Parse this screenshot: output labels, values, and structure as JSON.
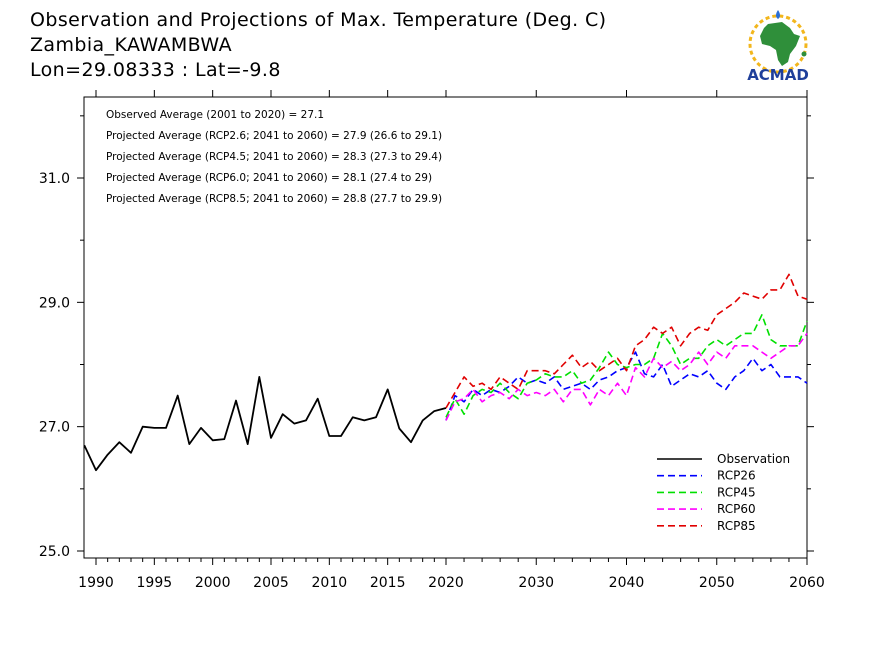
{
  "header": {
    "title": "Observation and Projections of Max. Temperature (Deg. C)",
    "location": "Zambia_KAWAMBWA",
    "coords": "Lon=29.08333 : Lat=-9.8"
  },
  "logo": {
    "text": "ACMAD",
    "icon": "africa-logo-icon",
    "color": "#1f3f9a"
  },
  "chart_data": {
    "type": "line",
    "x_axis": {
      "segments": [
        {
          "range": [
            1990,
            2020
          ],
          "ticks": [
            1990,
            1995,
            2000,
            2005,
            2010,
            2015,
            2020
          ]
        },
        {
          "range": [
            2020,
            2060
          ],
          "ticks": [
            2030,
            2040,
            2050,
            2060
          ]
        }
      ]
    },
    "y_axis": {
      "range": [
        24.9,
        32.3
      ],
      "ticks": [
        "25.0",
        "27.0",
        "29.0",
        "31.0"
      ]
    },
    "annotations": [
      "Observed Average (2001 to 2020) = 27.1",
      "Projected Average (RCP2.6; 2041 to 2060) = 27.9 (26.6 to 29.1)",
      "Projected Average (RCP4.5; 2041 to 2060) = 28.3 (27.3 to 29.4)",
      "Projected Average (RCP6.0; 2041 to 2060) = 28.1 (27.4 to 29)",
      "Projected Average (RCP8.5; 2041 to 2060) = 28.8 (27.7 to 29.9)"
    ],
    "legend_position": "bottom-right",
    "series": [
      {
        "name": "Observation",
        "color": "#000000",
        "dashed": false,
        "x": [
          1989,
          1990,
          1991,
          1992,
          1993,
          1994,
          1995,
          1996,
          1997,
          1998,
          1999,
          2000,
          2001,
          2002,
          2003,
          2004,
          2005,
          2006,
          2007,
          2008,
          2009,
          2010,
          2011,
          2012,
          2013,
          2014,
          2015,
          2016,
          2017,
          2018,
          2019,
          2020
        ],
        "values": [
          26.7,
          26.3,
          26.55,
          26.75,
          26.58,
          27.0,
          26.98,
          26.98,
          27.5,
          26.72,
          26.98,
          26.78,
          26.8,
          27.42,
          26.72,
          27.8,
          26.82,
          27.2,
          27.05,
          27.1,
          27.45,
          26.85,
          26.85,
          27.15,
          27.1,
          27.15,
          27.6,
          26.97,
          26.75,
          27.1,
          27.25,
          27.3
        ]
      },
      {
        "name": "RCP26",
        "color": "#0000ff",
        "dashed": true,
        "x": [
          2020,
          2021,
          2022,
          2023,
          2024,
          2025,
          2026,
          2027,
          2028,
          2029,
          2030,
          2031,
          2032,
          2033,
          2034,
          2035,
          2036,
          2037,
          2038,
          2039,
          2040,
          2041,
          2042,
          2043,
          2044,
          2045,
          2046,
          2047,
          2048,
          2049,
          2050,
          2051,
          2052,
          2053,
          2054,
          2055,
          2056,
          2057,
          2058,
          2059,
          2060
        ],
        "values": [
          27.1,
          27.5,
          27.4,
          27.6,
          27.5,
          27.6,
          27.55,
          27.65,
          27.8,
          27.7,
          27.75,
          27.7,
          27.8,
          27.6,
          27.65,
          27.7,
          27.6,
          27.75,
          27.8,
          27.9,
          27.95,
          28.2,
          27.85,
          27.8,
          28.0,
          27.65,
          27.75,
          27.85,
          27.8,
          27.9,
          27.7,
          27.6,
          27.8,
          27.9,
          28.1,
          27.9,
          28.0,
          27.8,
          27.8,
          27.8,
          27.7
        ]
      },
      {
        "name": "RCP45",
        "color": "#00e000",
        "dashed": true,
        "x": [
          2020,
          2021,
          2022,
          2023,
          2024,
          2025,
          2026,
          2027,
          2028,
          2029,
          2030,
          2031,
          2032,
          2033,
          2034,
          2035,
          2036,
          2037,
          2038,
          2039,
          2040,
          2041,
          2042,
          2043,
          2044,
          2045,
          2046,
          2047,
          2048,
          2049,
          2050,
          2051,
          2052,
          2053,
          2054,
          2055,
          2056,
          2057,
          2058,
          2059,
          2060
        ],
        "values": [
          27.15,
          27.45,
          27.2,
          27.5,
          27.6,
          27.55,
          27.7,
          27.55,
          27.45,
          27.7,
          27.75,
          27.85,
          27.8,
          27.8,
          27.9,
          27.7,
          27.75,
          27.95,
          28.2,
          28.0,
          27.95,
          28.0,
          28.0,
          28.1,
          28.5,
          28.3,
          28.0,
          28.1,
          28.1,
          28.3,
          28.4,
          28.3,
          28.4,
          28.5,
          28.5,
          28.8,
          28.4,
          28.3,
          28.3,
          28.3,
          28.7
        ]
      },
      {
        "name": "RCP60",
        "color": "#ff00ff",
        "dashed": true,
        "x": [
          2020,
          2021,
          2022,
          2023,
          2024,
          2025,
          2026,
          2027,
          2028,
          2029,
          2030,
          2031,
          2032,
          2033,
          2034,
          2035,
          2036,
          2037,
          2038,
          2039,
          2040,
          2041,
          2042,
          2043,
          2044,
          2045,
          2046,
          2047,
          2048,
          2049,
          2050,
          2051,
          2052,
          2053,
          2054,
          2055,
          2056,
          2057,
          2058,
          2059,
          2060
        ],
        "values": [
          27.1,
          27.4,
          27.45,
          27.6,
          27.4,
          27.5,
          27.55,
          27.45,
          27.6,
          27.5,
          27.55,
          27.5,
          27.6,
          27.4,
          27.6,
          27.6,
          27.35,
          27.6,
          27.5,
          27.7,
          27.5,
          27.95,
          27.8,
          28.1,
          27.95,
          28.05,
          27.9,
          28.0,
          28.2,
          28.0,
          28.2,
          28.1,
          28.3,
          28.3,
          28.3,
          28.2,
          28.1,
          28.2,
          28.3,
          28.3,
          28.5
        ]
      },
      {
        "name": "RCP85",
        "color": "#e00000",
        "dashed": true,
        "x": [
          2020,
          2021,
          2022,
          2023,
          2024,
          2025,
          2026,
          2027,
          2028,
          2029,
          2030,
          2031,
          2032,
          2033,
          2034,
          2035,
          2036,
          2037,
          2038,
          2039,
          2040,
          2041,
          2042,
          2043,
          2044,
          2045,
          2046,
          2047,
          2048,
          2049,
          2050,
          2051,
          2052,
          2053,
          2054,
          2055,
          2056,
          2057,
          2058,
          2059,
          2060
        ],
        "values": [
          27.3,
          27.55,
          27.8,
          27.65,
          27.7,
          27.6,
          27.8,
          27.7,
          27.6,
          27.9,
          27.9,
          27.9,
          27.85,
          28.0,
          28.15,
          27.95,
          28.05,
          27.9,
          28.0,
          28.1,
          27.9,
          28.3,
          28.4,
          28.6,
          28.5,
          28.6,
          28.3,
          28.5,
          28.6,
          28.55,
          28.8,
          28.9,
          29.0,
          29.15,
          29.1,
          29.05,
          29.2,
          29.2,
          29.45,
          29.1,
          29.05
        ]
      }
    ]
  }
}
